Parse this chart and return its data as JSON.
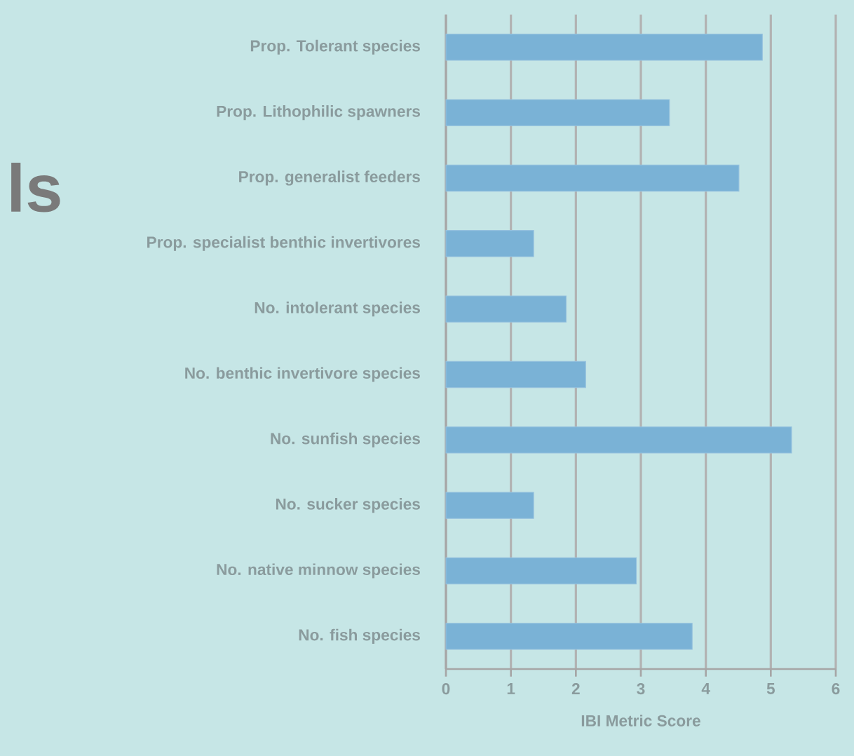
{
  "chart_data": {
    "type": "bar",
    "orientation": "horizontal",
    "annotations": [
      "ls"
    ],
    "categories": [
      "Prop. Tolerant species",
      "Prop. Lithophilic spawners",
      "Prop. generalist feeders",
      "Prop. specialist benthic invertivores",
      "No. intolerant species",
      "No. benthic invertivore species",
      "No. sunfish species",
      "No. sucker species",
      "No. native minnow species",
      "No. fish species"
    ],
    "values": [
      4.87,
      3.44,
      4.51,
      1.35,
      1.85,
      2.15,
      5.32,
      1.35,
      2.93,
      3.79
    ],
    "color": "#7ab2d6",
    "xlabel": "IBI Metric Score",
    "xlim": [
      0,
      6
    ],
    "xticks": [
      0,
      1,
      2,
      3,
      4,
      5,
      6
    ],
    "grid": "x"
  }
}
